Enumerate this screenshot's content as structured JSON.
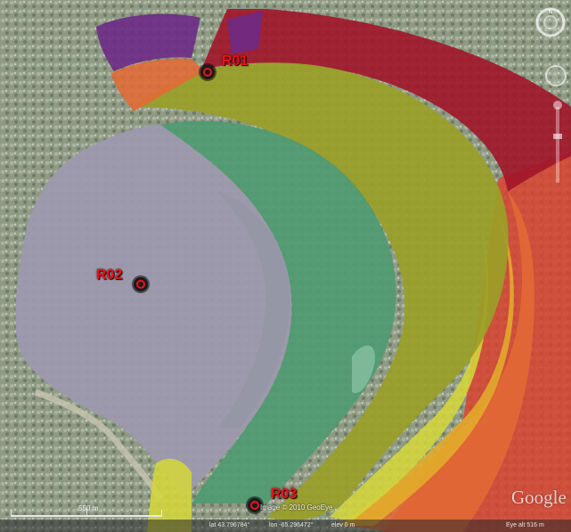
{
  "map": {
    "imagery": "satellite",
    "receivers": [
      {
        "id": "R01",
        "label": "R01"
      },
      {
        "id": "R02",
        "label": "R02"
      },
      {
        "id": "R03",
        "label": "R03"
      }
    ],
    "overlay_colors": {
      "water": "#9c99ad",
      "deep_green": "#0f5e2e",
      "mid_green": "#4f9a72",
      "olive": "#9aa027",
      "yellow": "#d4d63a",
      "orange_yellow": "#e2ad2a",
      "orange": "#e36a36",
      "red": "#d8422f",
      "dark_red": "#a1152a",
      "purple": "#6d2a86"
    },
    "scale_bar": {
      "label": "550 m"
    },
    "copyright": "Image © 2010 GeoEye",
    "logo": "Google",
    "status": {
      "lat": "lat  43.796784°",
      "lon": "lon  -65.296472°",
      "elev": "elev   0 m",
      "eye_alt": "Eye alt   516 m"
    },
    "navigation": {
      "compass_letter": "N"
    }
  }
}
